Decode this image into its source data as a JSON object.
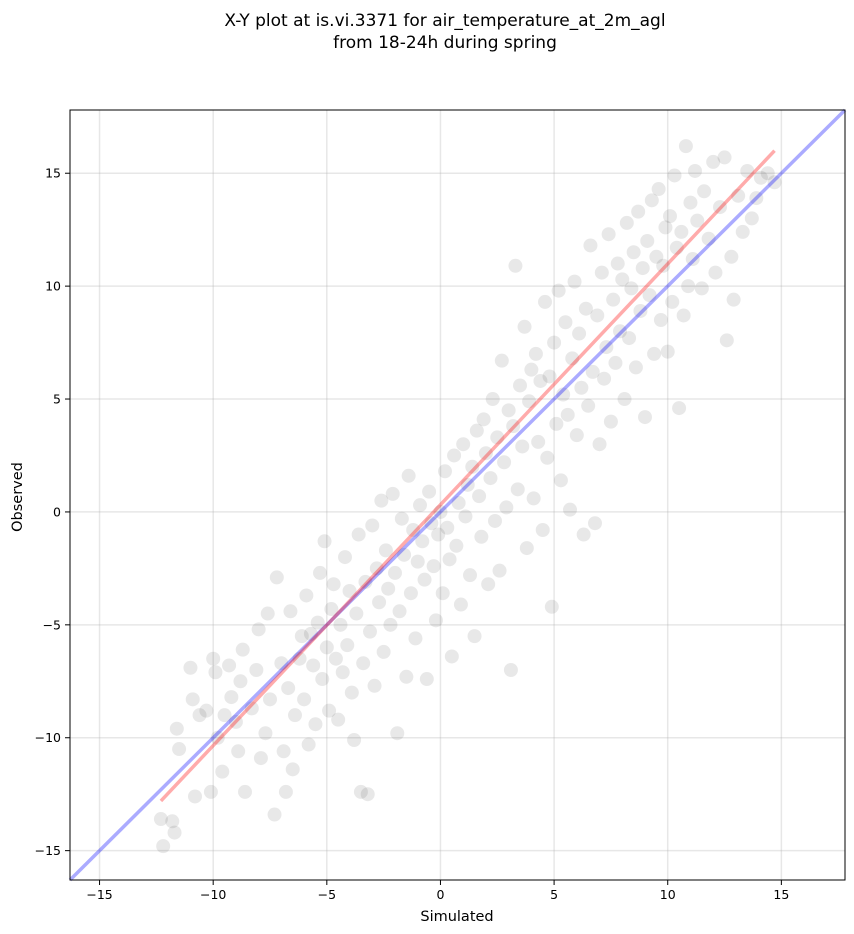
{
  "chart_data": {
    "type": "scatter",
    "title_line1": "X-Y plot at is.vi.3371 for air_temperature_at_2m_agl",
    "title_line2": "from 18-24h during spring",
    "xlabel": "Simulated",
    "ylabel": "Observed",
    "xlim": [
      -16.3,
      17.8
    ],
    "ylim": [
      -16.3,
      17.8
    ],
    "xticks": [
      -15,
      -10,
      -5,
      0,
      5,
      10,
      15
    ],
    "yticks": [
      -15,
      -10,
      -5,
      0,
      5,
      10,
      15
    ],
    "xtick_labels": [
      "−15",
      "−10",
      "−5",
      "0",
      "5",
      "10",
      "15"
    ],
    "ytick_labels": [
      "−15",
      "−10",
      "−5",
      "0",
      "5",
      "10",
      "15"
    ],
    "grid": true,
    "point_color": "#000000",
    "point_opacity": 0.09,
    "fit_line": {
      "color": "#ff0000",
      "opacity": 0.33,
      "x": [
        -12.3,
        14.7
      ],
      "y": [
        -12.8,
        16.0
      ]
    },
    "identity_line": {
      "color": "#0000ff",
      "opacity": 0.33,
      "x": [
        -16.3,
        17.8
      ],
      "y": [
        -16.3,
        17.8
      ]
    },
    "points": [
      [
        -12.3,
        -13.6
      ],
      [
        -12.2,
        -14.8
      ],
      [
        -11.8,
        -13.7
      ],
      [
        -11.7,
        -14.2
      ],
      [
        -11.5,
        -10.5
      ],
      [
        -11.6,
        -9.6
      ],
      [
        -11.0,
        -6.9
      ],
      [
        -10.9,
        -8.3
      ],
      [
        -10.8,
        -12.6
      ],
      [
        -10.6,
        -9.0
      ],
      [
        -10.3,
        -8.8
      ],
      [
        -10.1,
        -12.4
      ],
      [
        -10.0,
        -6.5
      ],
      [
        -9.9,
        -7.1
      ],
      [
        -9.8,
        -10.0
      ],
      [
        -9.6,
        -11.5
      ],
      [
        -9.5,
        -9.0
      ],
      [
        -9.3,
        -6.8
      ],
      [
        -9.2,
        -8.2
      ],
      [
        -9.0,
        -9.3
      ],
      [
        -8.9,
        -10.6
      ],
      [
        -8.8,
        -7.5
      ],
      [
        -8.7,
        -6.1
      ],
      [
        -8.6,
        -12.4
      ],
      [
        -8.3,
        -8.7
      ],
      [
        -8.1,
        -7.0
      ],
      [
        -8.0,
        -5.2
      ],
      [
        -7.9,
        -10.9
      ],
      [
        -7.7,
        -9.8
      ],
      [
        -7.6,
        -4.5
      ],
      [
        -7.5,
        -8.3
      ],
      [
        -7.3,
        -13.4
      ],
      [
        -7.2,
        -2.9
      ],
      [
        -7.0,
        -6.7
      ],
      [
        -6.9,
        -10.6
      ],
      [
        -6.8,
        -12.4
      ],
      [
        -6.7,
        -7.8
      ],
      [
        -6.6,
        -4.4
      ],
      [
        -6.5,
        -11.4
      ],
      [
        -6.4,
        -9.0
      ],
      [
        -6.2,
        -6.5
      ],
      [
        -6.1,
        -5.5
      ],
      [
        -6.0,
        -8.3
      ],
      [
        -5.9,
        -3.7
      ],
      [
        -5.8,
        -10.3
      ],
      [
        -5.7,
        -5.4
      ],
      [
        -5.6,
        -6.8
      ],
      [
        -5.5,
        -9.4
      ],
      [
        -5.4,
        -4.9
      ],
      [
        -5.3,
        -2.7
      ],
      [
        -5.2,
        -7.4
      ],
      [
        -5.1,
        -1.3
      ],
      [
        -5.0,
        -6.0
      ],
      [
        -4.9,
        -8.8
      ],
      [
        -4.8,
        -4.3
      ],
      [
        -4.7,
        -3.2
      ],
      [
        -4.6,
        -6.5
      ],
      [
        -4.5,
        -9.2
      ],
      [
        -4.4,
        -5.0
      ],
      [
        -4.3,
        -7.1
      ],
      [
        -4.2,
        -2.0
      ],
      [
        -4.1,
        -5.9
      ],
      [
        -4.0,
        -3.5
      ],
      [
        -3.9,
        -8.0
      ],
      [
        -3.8,
        -10.1
      ],
      [
        -3.7,
        -4.5
      ],
      [
        -3.6,
        -1.0
      ],
      [
        -3.5,
        -12.4
      ],
      [
        -3.4,
        -6.7
      ],
      [
        -3.3,
        -3.1
      ],
      [
        -3.2,
        -12.5
      ],
      [
        -3.1,
        -5.3
      ],
      [
        -3.0,
        -0.6
      ],
      [
        -2.9,
        -7.7
      ],
      [
        -2.8,
        -2.5
      ],
      [
        -2.7,
        -4.0
      ],
      [
        -2.6,
        0.5
      ],
      [
        -2.5,
        -6.2
      ],
      [
        -2.4,
        -1.7
      ],
      [
        -2.3,
        -3.4
      ],
      [
        -2.2,
        -5.0
      ],
      [
        -2.1,
        0.8
      ],
      [
        -2.0,
        -2.7
      ],
      [
        -1.9,
        -9.8
      ],
      [
        -1.8,
        -4.4
      ],
      [
        -1.7,
        -0.3
      ],
      [
        -1.6,
        -1.9
      ],
      [
        -1.5,
        -7.3
      ],
      [
        -1.4,
        1.6
      ],
      [
        -1.3,
        -3.6
      ],
      [
        -1.2,
        -0.8
      ],
      [
        -1.1,
        -5.6
      ],
      [
        -1.0,
        -2.2
      ],
      [
        -0.9,
        0.3
      ],
      [
        -0.8,
        -1.3
      ],
      [
        -0.7,
        -3.0
      ],
      [
        -0.6,
        -7.4
      ],
      [
        -0.5,
        0.9
      ],
      [
        -0.4,
        -0.5
      ],
      [
        -0.3,
        -2.4
      ],
      [
        -0.2,
        -4.8
      ],
      [
        -0.1,
        -1.0
      ],
      [
        0.0,
        0.0
      ],
      [
        0.1,
        -3.6
      ],
      [
        0.2,
        1.8
      ],
      [
        0.3,
        -0.7
      ],
      [
        0.4,
        -2.1
      ],
      [
        0.5,
        -6.4
      ],
      [
        0.6,
        2.5
      ],
      [
        0.7,
        -1.5
      ],
      [
        0.8,
        0.4
      ],
      [
        0.9,
        -4.1
      ],
      [
        1.0,
        3.0
      ],
      [
        1.1,
        -0.2
      ],
      [
        1.2,
        1.2
      ],
      [
        1.3,
        -2.8
      ],
      [
        1.4,
        2.0
      ],
      [
        1.5,
        -5.5
      ],
      [
        1.6,
        3.6
      ],
      [
        1.7,
        0.7
      ],
      [
        1.8,
        -1.1
      ],
      [
        1.9,
        4.1
      ],
      [
        2.0,
        2.6
      ],
      [
        2.1,
        -3.2
      ],
      [
        2.2,
        1.5
      ],
      [
        2.3,
        5.0
      ],
      [
        2.4,
        -0.4
      ],
      [
        2.5,
        3.3
      ],
      [
        2.6,
        -2.6
      ],
      [
        2.7,
        6.7
      ],
      [
        2.8,
        2.2
      ],
      [
        2.9,
        0.2
      ],
      [
        3.0,
        4.5
      ],
      [
        3.1,
        -7.0
      ],
      [
        3.2,
        3.8
      ],
      [
        3.3,
        10.9
      ],
      [
        3.4,
        1.0
      ],
      [
        3.5,
        5.6
      ],
      [
        3.6,
        2.9
      ],
      [
        3.7,
        8.2
      ],
      [
        3.8,
        -1.6
      ],
      [
        3.9,
        4.9
      ],
      [
        4.0,
        6.3
      ],
      [
        4.1,
        0.6
      ],
      [
        4.2,
        7.0
      ],
      [
        4.3,
        3.1
      ],
      [
        4.4,
        5.8
      ],
      [
        4.5,
        -0.8
      ],
      [
        4.6,
        9.3
      ],
      [
        4.7,
        2.4
      ],
      [
        4.8,
        6.0
      ],
      [
        4.9,
        -4.2
      ],
      [
        5.0,
        7.5
      ],
      [
        5.1,
        3.9
      ],
      [
        5.2,
        9.8
      ],
      [
        5.3,
        1.4
      ],
      [
        5.4,
        5.2
      ],
      [
        5.5,
        8.4
      ],
      [
        5.6,
        4.3
      ],
      [
        5.7,
        0.1
      ],
      [
        5.8,
        6.8
      ],
      [
        5.9,
        10.2
      ],
      [
        6.0,
        3.4
      ],
      [
        6.1,
        7.9
      ],
      [
        6.2,
        5.5
      ],
      [
        6.3,
        -1.0
      ],
      [
        6.4,
        9.0
      ],
      [
        6.5,
        4.7
      ],
      [
        6.6,
        11.8
      ],
      [
        6.7,
        6.2
      ],
      [
        6.8,
        -0.5
      ],
      [
        6.9,
        8.7
      ],
      [
        7.0,
        3.0
      ],
      [
        7.1,
        10.6
      ],
      [
        7.2,
        5.9
      ],
      [
        7.3,
        7.3
      ],
      [
        7.4,
        12.3
      ],
      [
        7.5,
        4.0
      ],
      [
        7.6,
        9.4
      ],
      [
        7.7,
        6.6
      ],
      [
        7.8,
        11.0
      ],
      [
        7.9,
        8.0
      ],
      [
        8.0,
        10.3
      ],
      [
        8.1,
        5.0
      ],
      [
        8.2,
        12.8
      ],
      [
        8.3,
        7.7
      ],
      [
        8.4,
        9.9
      ],
      [
        8.5,
        11.5
      ],
      [
        8.6,
        6.4
      ],
      [
        8.7,
        13.3
      ],
      [
        8.8,
        8.9
      ],
      [
        8.9,
        10.8
      ],
      [
        9.0,
        4.2
      ],
      [
        9.1,
        12.0
      ],
      [
        9.2,
        9.6
      ],
      [
        9.3,
        13.8
      ],
      [
        9.4,
        7.0
      ],
      [
        9.5,
        11.3
      ],
      [
        9.6,
        14.3
      ],
      [
        9.7,
        8.5
      ],
      [
        9.8,
        10.9
      ],
      [
        9.9,
        12.6
      ],
      [
        10.0,
        7.1
      ],
      [
        10.1,
        13.1
      ],
      [
        10.2,
        9.3
      ],
      [
        10.3,
        14.9
      ],
      [
        10.4,
        11.7
      ],
      [
        10.5,
        4.6
      ],
      [
        10.6,
        12.4
      ],
      [
        10.7,
        8.7
      ],
      [
        10.8,
        16.2
      ],
      [
        10.9,
        10.0
      ],
      [
        11.0,
        13.7
      ],
      [
        11.1,
        11.2
      ],
      [
        11.2,
        15.1
      ],
      [
        11.3,
        12.9
      ],
      [
        11.5,
        9.9
      ],
      [
        11.6,
        14.2
      ],
      [
        11.8,
        12.1
      ],
      [
        12.0,
        15.5
      ],
      [
        12.1,
        10.6
      ],
      [
        12.3,
        13.5
      ],
      [
        12.5,
        15.7
      ],
      [
        12.6,
        7.6
      ],
      [
        12.8,
        11.3
      ],
      [
        12.9,
        9.4
      ],
      [
        13.1,
        14.0
      ],
      [
        13.3,
        12.4
      ],
      [
        13.5,
        15.1
      ],
      [
        13.7,
        13.0
      ],
      [
        13.9,
        13.9
      ],
      [
        14.1,
        14.8
      ],
      [
        14.4,
        15.0
      ],
      [
        14.7,
        14.6
      ]
    ]
  }
}
